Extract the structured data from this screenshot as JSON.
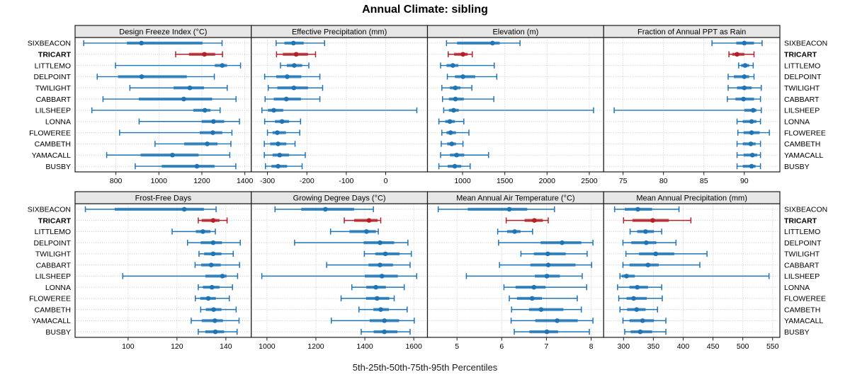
{
  "title": "Annual Climate: sibling",
  "footer": "5th-25th-50th-75th-95th Percentiles",
  "stations": [
    "SIXBEACON",
    "TRICART",
    "LITTLEMO",
    "DELPOINT",
    "TWILIGHT",
    "CABBART",
    "LILSHEEP",
    "LONNA",
    "FLOWEREE",
    "CAMBETH",
    "YAMACALL",
    "BUSBY"
  ],
  "highlight_station": "TRICART",
  "colors": {
    "series": "#1f74b4",
    "highlight": "#b22126",
    "strip_bg": "#e6e6e6",
    "panel_border": "#1a1a1a",
    "grid": "#c8c8c8",
    "text": "#000000"
  },
  "chart_data": {
    "type": "trellis-percentile-dotplot",
    "percentiles": [
      5,
      25,
      50,
      75,
      95
    ],
    "grid": true,
    "layout": {
      "rows": 2,
      "cols": 4
    },
    "panels": [
      {
        "title": "Design Freeze Index (°C)",
        "ticks": [
          800,
          1000,
          1200,
          1400
        ],
        "domain": [
          610,
          1430
        ],
        "series": {
          "SIXBEACON": [
            650,
            851,
            919,
            1203,
            1294
          ],
          "TRICART": [
            1078,
            1140,
            1212,
            1262,
            1296
          ],
          "LITTLEMO": [
            798,
            1260,
            1295,
            1317,
            1380
          ],
          "DELPOINT": [
            713,
            810,
            920,
            1130,
            1258
          ],
          "TWILIGHT": [
            865,
            1068,
            1144,
            1210,
            1318
          ],
          "CABBART": [
            740,
            906,
            1116,
            1248,
            1359
          ],
          "LILSHEEP": [
            688,
            1160,
            1214,
            1240,
            1285
          ],
          "LONNA": [
            908,
            1199,
            1254,
            1304,
            1375
          ],
          "FLOWEREE": [
            817,
            1190,
            1251,
            1295,
            1340
          ],
          "CAMBETH": [
            982,
            1118,
            1225,
            1273,
            1335
          ],
          "YAMACALL": [
            757,
            915,
            1063,
            1185,
            1330
          ],
          "BUSBY": [
            890,
            1013,
            1177,
            1259,
            1358
          ]
        }
      },
      {
        "title": "Effective Precipitation (mm)",
        "ticks": [
          -300,
          -200,
          -100,
          0
        ],
        "domain": [
          -341,
          106
        ],
        "series": {
          "SIXBEACON": [
            -278,
            -257,
            -234,
            -208,
            -155
          ],
          "TRICART": [
            -277,
            -261,
            -227,
            -197,
            -178
          ],
          "LITTLEMO": [
            -267,
            -251,
            -232,
            -212,
            -195
          ],
          "DELPOINT": [
            -307,
            -278,
            -250,
            -214,
            -167
          ],
          "TWILIGHT": [
            -298,
            -275,
            -233,
            -197,
            -160
          ],
          "CABBART": [
            -306,
            -284,
            -252,
            -215,
            -167
          ],
          "LILSHEEP": [
            -314,
            -299,
            -284,
            -260,
            79
          ],
          "LONNA": [
            -307,
            -281,
            -263,
            -245,
            -216
          ],
          "FLOWEREE": [
            -300,
            -287,
            -275,
            -253,
            -218
          ],
          "CAMBETH": [
            -308,
            -293,
            -273,
            -252,
            -230
          ],
          "YAMACALL": [
            -308,
            -287,
            -269,
            -245,
            -204
          ],
          "BUSBY": [
            -305,
            -290,
            -273,
            -250,
            -212
          ]
        }
      },
      {
        "title": "Elevation (m)",
        "ticks": [
          1000,
          1500,
          2000,
          2500
        ],
        "domain": [
          585,
          2670
        ],
        "series": {
          "SIXBEACON": [
            810,
            935,
            1355,
            1440,
            1680
          ],
          "TRICART": [
            830,
            900,
            1005,
            1060,
            1115
          ],
          "LITTLEMO": [
            740,
            810,
            885,
            950,
            1375
          ],
          "DELPOINT": [
            820,
            910,
            1005,
            1150,
            1405
          ],
          "TWILIGHT": [
            755,
            850,
            915,
            975,
            1110
          ],
          "CABBART": [
            763,
            838,
            916,
            1014,
            1370
          ],
          "LILSHEEP": [
            777,
            838,
            894,
            955,
            2550
          ],
          "LONNA": [
            720,
            795,
            850,
            910,
            1015
          ],
          "FLOWEREE": [
            755,
            810,
            858,
            922,
            1075
          ],
          "CAMBETH": [
            748,
            818,
            872,
            922,
            1005
          ],
          "YAMACALL": [
            740,
            852,
            930,
            1020,
            1308
          ],
          "BUSBY": [
            720,
            824,
            908,
            985,
            1090
          ]
        }
      },
      {
        "title": "Fraction of Annual PPT as Rain",
        "ticks": [
          75,
          80,
          85,
          90
        ],
        "domain": [
          72.6,
          94.4
        ],
        "series": {
          "SIXBEACON": [
            86.0,
            89.0,
            90.0,
            91.2,
            92.2
          ],
          "TRICART": [
            88.1,
            88.5,
            89.1,
            90.0,
            91.2
          ],
          "LITTLEMO": [
            89.3,
            89.6,
            90.1,
            90.6,
            91.1
          ],
          "DELPOINT": [
            88.0,
            88.7,
            90.0,
            90.6,
            91.2
          ],
          "TWILIGHT": [
            88.0,
            89.1,
            90.0,
            90.9,
            92.1
          ],
          "CABBART": [
            87.9,
            88.9,
            89.9,
            91.2,
            92.0
          ],
          "LILSHEEP": [
            73.9,
            90.0,
            91.1,
            91.5,
            92.1
          ],
          "LONNA": [
            89.1,
            89.8,
            90.9,
            91.5,
            92.0
          ],
          "FLOWEREE": [
            89.2,
            89.9,
            90.9,
            91.9,
            93.1
          ],
          "CAMBETH": [
            89.1,
            89.8,
            90.8,
            91.4,
            92.0
          ],
          "YAMACALL": [
            89.1,
            89.9,
            91.0,
            91.6,
            92.0
          ],
          "BUSBY": [
            89.1,
            89.8,
            90.9,
            91.4,
            92.0
          ]
        }
      },
      {
        "title": "Frost-Free Days",
        "ticks": [
          100,
          120,
          140
        ],
        "domain": [
          78.3,
          150.4
        ],
        "series": {
          "SIXBEACON": [
            82.5,
            94.5,
            123,
            131,
            136
          ],
          "TRICART": [
            128.7,
            130.1,
            134.8,
            137.4,
            140.5
          ],
          "LITTLEMO": [
            118,
            127.7,
            130.6,
            133.7,
            135.7
          ],
          "DELPOINT": [
            124.3,
            129.7,
            134.8,
            138.4,
            145.9
          ],
          "TWILIGHT": [
            129,
            131.1,
            134.8,
            138.2,
            143
          ],
          "CABBART": [
            127.4,
            129.9,
            134,
            137.9,
            145.6
          ],
          "LILSHEEP": [
            97.8,
            131.6,
            138.6,
            140.3,
            144.8
          ],
          "LONNA": [
            128.7,
            130.6,
            134.3,
            137.4,
            142.7
          ],
          "FLOWEREE": [
            127.5,
            129.5,
            132.8,
            135.9,
            141.4
          ],
          "CAMBETH": [
            129.7,
            131.8,
            135,
            138.2,
            144.2
          ],
          "YAMACALL": [
            125.8,
            130.1,
            135.5,
            138.8,
            145.4
          ],
          "BUSBY": [
            128.7,
            131.6,
            135.7,
            139.3,
            144.6
          ]
        }
      },
      {
        "title": "Growing Degree Days (°C)",
        "ticks": [
          1000,
          1200,
          1400,
          1600
        ],
        "domain": [
          936,
          1656
        ],
        "series": {
          "SIXBEACON": [
            1033,
            1140,
            1239,
            1356,
            1435
          ],
          "TRICART": [
            1316,
            1356,
            1417,
            1452,
            1465
          ],
          "LITTLEMO": [
            1260,
            1337,
            1407,
            1445,
            1455
          ],
          "DELPOINT": [
            1113,
            1395,
            1462,
            1520,
            1576
          ],
          "TWILIGHT": [
            1398,
            1443,
            1484,
            1542,
            1590
          ],
          "CABBART": [
            1244,
            1415,
            1462,
            1515,
            1585
          ],
          "LILSHEEP": [
            979,
            1400,
            1470,
            1535,
            1612
          ],
          "LONNA": [
            1347,
            1406,
            1445,
            1486,
            1561
          ],
          "FLOWEREE": [
            1303,
            1405,
            1450,
            1500,
            1520
          ],
          "CAMBETH": [
            1376,
            1435,
            1465,
            1498,
            1573
          ],
          "YAMACALL": [
            1263,
            1420,
            1480,
            1540,
            1602
          ],
          "BUSBY": [
            1385,
            1436,
            1480,
            1533,
            1585
          ]
        }
      },
      {
        "title": "Mean Annual Air Temperature (°C)",
        "ticks": [
          5,
          6,
          7,
          8
        ],
        "domain": [
          4.34,
          8.28
        ],
        "series": {
          "SIXBEACON": [
            4.58,
            5.24,
            6.17,
            6.57,
            7.18
          ],
          "TRICART": [
            6.1,
            6.51,
            6.73,
            6.92,
            7.04
          ],
          "LITTLEMO": [
            5.91,
            6.12,
            6.29,
            6.42,
            6.69
          ],
          "DELPOINT": [
            5.93,
            6.87,
            7.35,
            7.78,
            8.04
          ],
          "TWILIGHT": [
            6.43,
            6.72,
            7.03,
            7.43,
            7.91
          ],
          "CABBART": [
            5.95,
            6.64,
            7.04,
            7.65,
            8.01
          ],
          "LILSHEEP": [
            5.21,
            6.74,
            7.01,
            7.3,
            7.8
          ],
          "LONNA": [
            6.05,
            6.31,
            6.72,
            6.98,
            7.9
          ],
          "FLOWEREE": [
            6.17,
            6.34,
            6.68,
            6.9,
            7.69
          ],
          "CAMBETH": [
            6.22,
            6.61,
            6.88,
            7.38,
            7.78
          ],
          "YAMACALL": [
            6.21,
            6.75,
            7.24,
            7.7,
            8.04
          ],
          "BUSBY": [
            6.28,
            6.62,
            7.01,
            7.26,
            7.96
          ]
        }
      },
      {
        "title": "Mean Annual Precipitation (mm)",
        "ticks": [
          300,
          350,
          400,
          450,
          500,
          550
        ],
        "domain": [
          266.7,
          562.2
        ],
        "series": {
          "SIXBEACON": [
            285,
            302,
            324,
            348,
            393
          ],
          "TRICART": [
            300,
            315,
            349,
            376,
            413
          ],
          "LITTLEMO": [
            311,
            323,
            337,
            351,
            364
          ],
          "DELPOINT": [
            299,
            313,
            338,
            355,
            388
          ],
          "TWILIGHT": [
            304,
            326,
            354,
            385,
            440
          ],
          "CABBART": [
            299,
            310,
            341,
            359,
            428
          ],
          "LILSHEEP": [
            294,
            297,
            305,
            319,
            544
          ],
          "LONNA": [
            290,
            310,
            323,
            341,
            364
          ],
          "FLOWEREE": [
            292,
            305,
            317,
            339,
            365
          ],
          "CAMBETH": [
            294,
            306,
            322,
            337,
            357
          ],
          "YAMACALL": [
            299,
            310,
            332,
            351,
            371
          ],
          "BUSBY": [
            302,
            312,
            328,
            348,
            371
          ]
        }
      }
    ]
  }
}
